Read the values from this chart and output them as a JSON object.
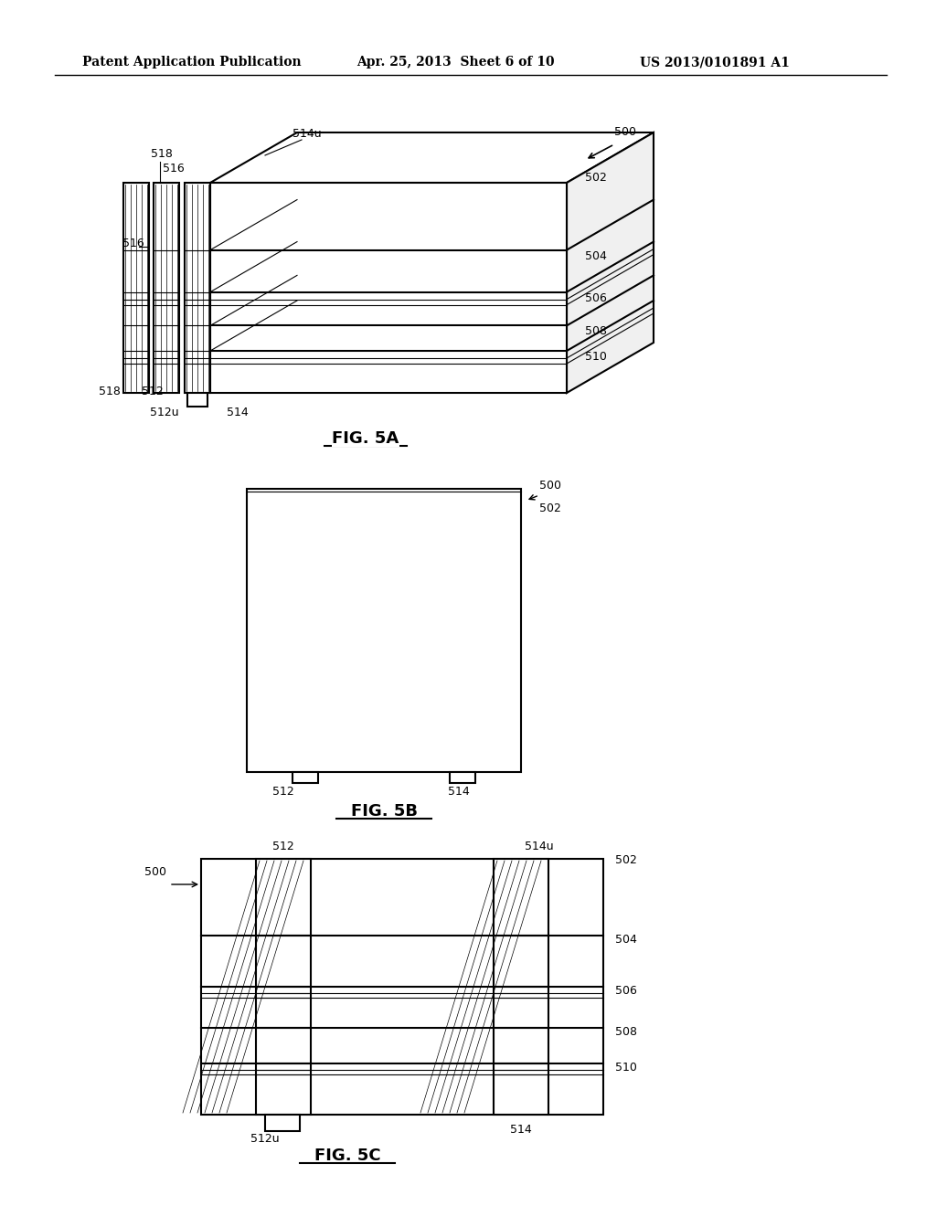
{
  "title_left": "Patent Application Publication",
  "title_mid": "Apr. 25, 2013  Sheet 6 of 10",
  "title_right": "US 2013/0101891 A1",
  "bg_color": "#ffffff",
  "line_color": "#000000",
  "fig5a_label": "FIG. 5A",
  "fig5b_label": "FIG. 5B",
  "fig5c_label": "FIG. 5C"
}
